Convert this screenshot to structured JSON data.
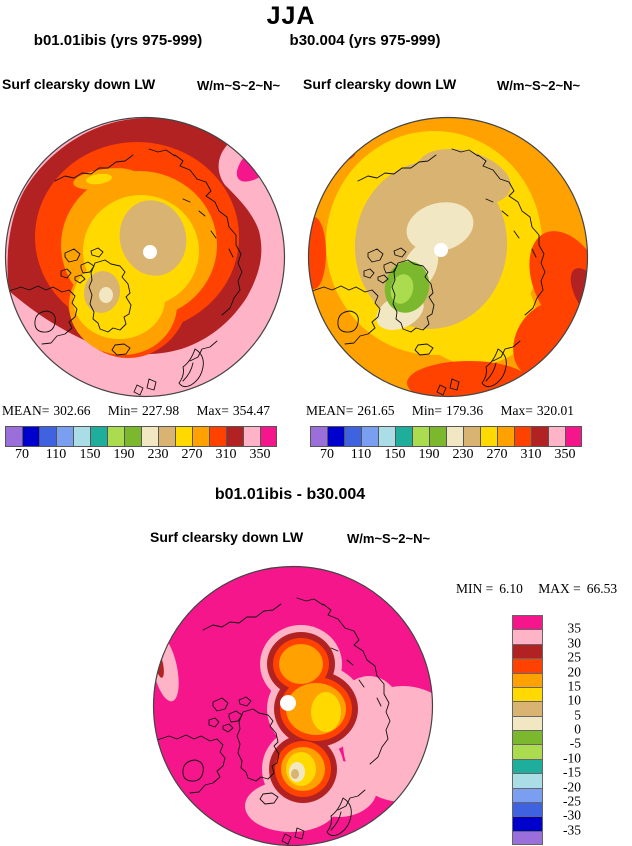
{
  "title": "JJA",
  "panels": [
    {
      "subtitle": "b01.01ibis (yrs 975-999)",
      "field_label": "Surf clearsky down LW",
      "units_label": "W/m~S~2~N~",
      "stats": {
        "mean_label": "MEAN=",
        "mean": "302.66",
        "min_label": "Min=",
        "min": "227.98",
        "max_label": "Max=",
        "max": "354.47"
      }
    },
    {
      "subtitle": "b30.004 (yrs 975-999)",
      "field_label": "Surf clearsky down LW",
      "units_label": "W/m~S~2~N~",
      "stats": {
        "mean_label": "MEAN=",
        "mean": "261.65",
        "min_label": "Min=",
        "min": "179.36",
        "max_label": "Max=",
        "max": "320.01"
      }
    }
  ],
  "difference_panel": {
    "title": "b01.01ibis - b30.004",
    "field_label": "Surf clearsky down LW",
    "units_label": "W/m~S~2~N~",
    "min_label": "MIN =",
    "min": "6.10",
    "max_label": "MAX =",
    "max": "66.53"
  },
  "shared_colorbar": {
    "tick_labels": [
      "70",
      "110",
      "150",
      "190",
      "230",
      "270",
      "310",
      "350"
    ],
    "colors": [
      "#9a6fd9",
      "#0000cd",
      "#3f63e0",
      "#7b9ff0",
      "#abdde6",
      "#1fae9c",
      "#abdc50",
      "#7cb82e",
      "#f2e7c3",
      "#d9b372",
      "#ffd900",
      "#ffa100",
      "#ff4200",
      "#b22222",
      "#ffb3c6",
      "#f5168c"
    ]
  },
  "difference_colorbar": {
    "tick_labels": [
      "35",
      "30",
      "25",
      "20",
      "15",
      "10",
      "5",
      "0",
      "-5",
      "-10",
      "-15",
      "-20",
      "-25",
      "-30",
      "-35"
    ],
    "colors": [
      "#f5168c",
      "#ffb3c6",
      "#b22222",
      "#ff4200",
      "#ffa100",
      "#ffd900",
      "#d9b372",
      "#f2e7c3",
      "#7cb82e",
      "#abdc50",
      "#1fae9c",
      "#abdde6",
      "#7b9ff0",
      "#3f63e0",
      "#0000cd",
      "#9a6fd9"
    ]
  },
  "map_colors": {
    "purple": "#9a6fd9",
    "dark_blue": "#0000cd",
    "royal_blue": "#3f63e0",
    "light_blue": "#7b9ff0",
    "pale_cyan": "#abdde6",
    "teal": "#1fae9c",
    "light_green": "#abdc50",
    "green": "#7cb82e",
    "cream": "#f2e7c3",
    "tan": "#d9b372",
    "yellow": "#ffd900",
    "orange": "#ffa100",
    "orange_red": "#ff4200",
    "dark_red": "#b22222",
    "pink": "#ffb3c6",
    "magenta": "#f5168c",
    "white": "#ffffff",
    "coast": "#111111",
    "rim": "#444444"
  },
  "chart_data": [
    {
      "type": "heatmap",
      "title": "b01.01ibis (yrs 975-999)",
      "variable": "Surf clearsky down LW",
      "units": "W/m~S~2~N~",
      "projection": "north polar stereographic map, filled contours",
      "season": "JJA",
      "mean": 302.66,
      "min": 227.98,
      "max": 354.47,
      "contour_levels": [
        70,
        90,
        110,
        130,
        150,
        170,
        190,
        210,
        230,
        250,
        270,
        290,
        310,
        330,
        350
      ],
      "legend_position": "horizontal bar below map, labels every 40 from 70 to 350"
    },
    {
      "type": "heatmap",
      "title": "b30.004 (yrs 975-999)",
      "variable": "Surf clearsky down LW",
      "units": "W/m~S~2~N~",
      "projection": "north polar stereographic map, filled contours",
      "season": "JJA",
      "mean": 261.65,
      "min": 179.36,
      "max": 320.01,
      "contour_levels": [
        70,
        90,
        110,
        130,
        150,
        170,
        190,
        210,
        230,
        250,
        270,
        290,
        310,
        330,
        350
      ],
      "legend_position": "horizontal bar below map, labels every 40 from 70 to 350"
    },
    {
      "type": "heatmap",
      "title": "b01.01ibis - b30.004",
      "variable": "Surf clearsky down LW difference",
      "units": "W/m~S~2~N~",
      "projection": "north polar stereographic map, filled contours",
      "season": "JJA",
      "min": 6.1,
      "max": 66.53,
      "contour_levels": [
        -35,
        -30,
        -25,
        -20,
        -15,
        -10,
        -5,
        0,
        5,
        10,
        15,
        20,
        25,
        30,
        35
      ],
      "legend_position": "vertical bar at right, labels 35 down to -35"
    }
  ]
}
